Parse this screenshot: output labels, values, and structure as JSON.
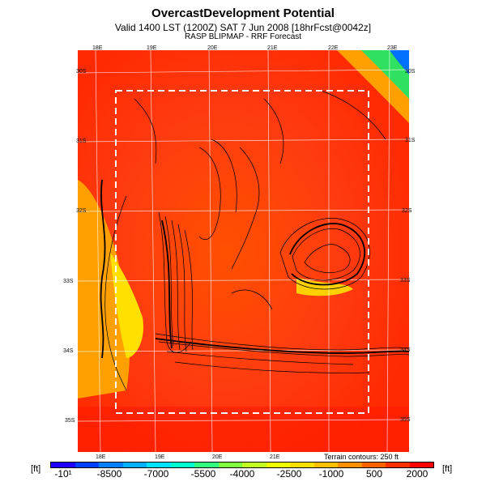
{
  "header": {
    "title": "OvercastDevelopment Potential",
    "valid_line": "Valid 1400 LST (1200Z) SAT 7 Jun 2008 [18hrFcst@0042z]",
    "model_line": "RASP BLIPMAP - RRF Forecast"
  },
  "map": {
    "lon_labels_top": [
      "18E",
      "19E",
      "20E",
      "21E",
      "22E",
      "23E"
    ],
    "lon_labels_bottom": [
      "18E",
      "19E",
      "20E",
      "21E"
    ],
    "lat_labels_left": [
      "30S",
      "31S",
      "32S",
      "33S",
      "34S",
      "35S"
    ],
    "lat_labels_right": [
      "30S",
      "31S",
      "32S",
      "33S",
      "34S",
      "35S"
    ],
    "terrain_note": "Terrain contours: 250 ft"
  },
  "legend": {
    "unit_left": "[ft]",
    "unit_right": "[ft]",
    "labels": [
      "-10¹",
      "-8500",
      "-7000",
      "-5500",
      "-4000",
      "-2500",
      "-1000",
      "500",
      "2000"
    ],
    "colors": [
      "#2000ff",
      "#0040ff",
      "#0080ff",
      "#00b0ff",
      "#00e0ff",
      "#00ffd0",
      "#30ff80",
      "#80ff40",
      "#c0ff20",
      "#f0ff00",
      "#ffe000",
      "#ffc000",
      "#ff9000",
      "#ff6000",
      "#ff3000",
      "#ff0000"
    ]
  }
}
